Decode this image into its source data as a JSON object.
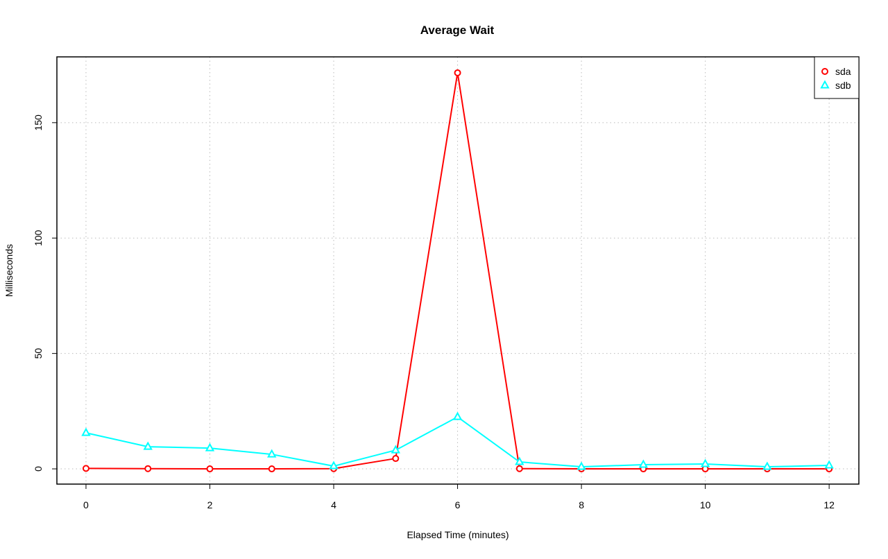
{
  "chart_data": {
    "type": "line",
    "title": "Average Wait",
    "xlabel": "Elapsed Time (minutes)",
    "ylabel": "Milliseconds",
    "x": [
      0,
      1,
      2,
      3,
      4,
      5,
      6,
      7,
      8,
      9,
      10,
      11,
      12
    ],
    "xlim": [
      -0.47,
      12.48
    ],
    "ylim": [
      -6.6,
      178.5
    ],
    "xticks": [
      "0",
      "2",
      "4",
      "6",
      "8",
      "10",
      "12"
    ],
    "yticks": [
      "0",
      "50",
      "100",
      "150"
    ],
    "grid": true,
    "legend_position": "top-right",
    "series": [
      {
        "name": "sda",
        "color": "#ff0000",
        "marker": "circle",
        "values": [
          0.2,
          0.1,
          0.0,
          0.0,
          0.1,
          4.5,
          171.6,
          0.1,
          0.0,
          0.0,
          0.0,
          0.0,
          0.0
        ]
      },
      {
        "name": "sdb",
        "color": "#00ffff",
        "marker": "triangle",
        "values": [
          15.6,
          9.6,
          9.0,
          6.3,
          1.2,
          8.1,
          22.5,
          3.0,
          0.9,
          1.8,
          2.1,
          0.9,
          1.5
        ]
      }
    ]
  }
}
